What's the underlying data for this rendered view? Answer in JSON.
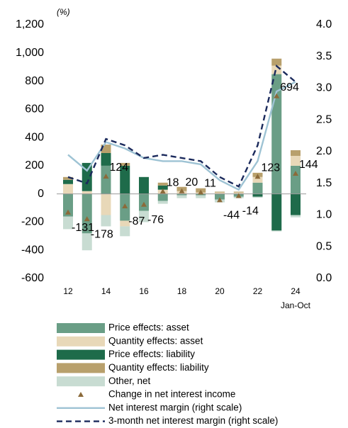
{
  "chart_data": {
    "type": "bar",
    "y_unit_label": "(%)",
    "categories": [
      "12",
      null,
      "14",
      null,
      "16",
      null,
      "18",
      null,
      "20",
      null,
      "22",
      null,
      "24"
    ],
    "category_note": "Jan-Oct",
    "ylim": [
      -600,
      1200
    ],
    "yticks": [
      -600,
      -400,
      -200,
      0,
      200,
      400,
      600,
      800,
      {
        "value": 1000,
        "label": "1,000"
      },
      {
        "value": 1200,
        "label": "1,200"
      }
    ],
    "y2lim": [
      0,
      4
    ],
    "y2ticks": [
      {
        "value": 0,
        "label": "0.0"
      },
      {
        "value": 0.5,
        "label": "0.5"
      },
      {
        "value": 1,
        "label": "1.0"
      },
      {
        "value": 1.5,
        "label": "1.5"
      },
      {
        "value": 2,
        "label": "2.0"
      },
      {
        "value": 2.5,
        "label": "2.5"
      },
      {
        "value": 3,
        "label": "3.0"
      },
      {
        "value": 3.5,
        "label": "3.5"
      },
      {
        "value": 4,
        "label": "4.0"
      }
    ],
    "series": [
      {
        "name": "Price effects: asset",
        "style": "bar",
        "color": "#6a9e86",
        "values": [
          -160,
          -280,
          200,
          -190,
          -120,
          -50,
          -10,
          -10,
          -40,
          -20,
          80,
          850,
          200
        ]
      },
      {
        "name": "Quantity effects: asset",
        "style": "bar",
        "color": "#e8d8b8",
        "values": [
          70,
          20,
          -150,
          -40,
          0,
          30,
          20,
          10,
          10,
          10,
          40,
          60,
          70
        ]
      },
      {
        "name": "Price effects: liability",
        "style": "bar",
        "color": "#1e6b4a",
        "values": [
          30,
          200,
          90,
          200,
          120,
          30,
          0,
          0,
          0,
          0,
          -20,
          -260,
          -150
        ]
      },
      {
        "name": "Quantity effects: liability",
        "style": "bar",
        "color": "#b8a06c",
        "values": [
          20,
          0,
          60,
          20,
          0,
          20,
          30,
          30,
          6,
          6,
          30,
          50,
          40
        ]
      },
      {
        "name": "Other, net",
        "style": "bar",
        "color": "#c8dcd2",
        "values": [
          -90,
          -120,
          -80,
          -70,
          -80,
          -20,
          -20,
          -20,
          -20,
          -10,
          -7,
          -6,
          -16
        ]
      },
      {
        "name": "Change in net interest income",
        "style": "marker",
        "color": "#8b6a3a",
        "values": [
          -131,
          -178,
          124,
          -87,
          -76,
          18,
          20,
          11,
          -44,
          -14,
          123,
          694,
          144
        ]
      },
      {
        "name": "Net interest margin (right scale)",
        "style": "line",
        "axis": "y2",
        "color": "#9ec3d4",
        "values": [
          1.95,
          1.7,
          2.15,
          2.05,
          1.9,
          1.85,
          1.85,
          1.8,
          1.55,
          1.4,
          1.85,
          2.95,
          3.1
        ]
      },
      {
        "name": "3-month net interest margin (right scale)",
        "style": "dashed",
        "axis": "y2",
        "color": "#1b2a5c",
        "values": [
          1.6,
          1.5,
          2.2,
          2.1,
          1.9,
          1.95,
          1.9,
          1.85,
          1.6,
          1.45,
          2.1,
          3.35,
          3.1
        ]
      }
    ]
  }
}
